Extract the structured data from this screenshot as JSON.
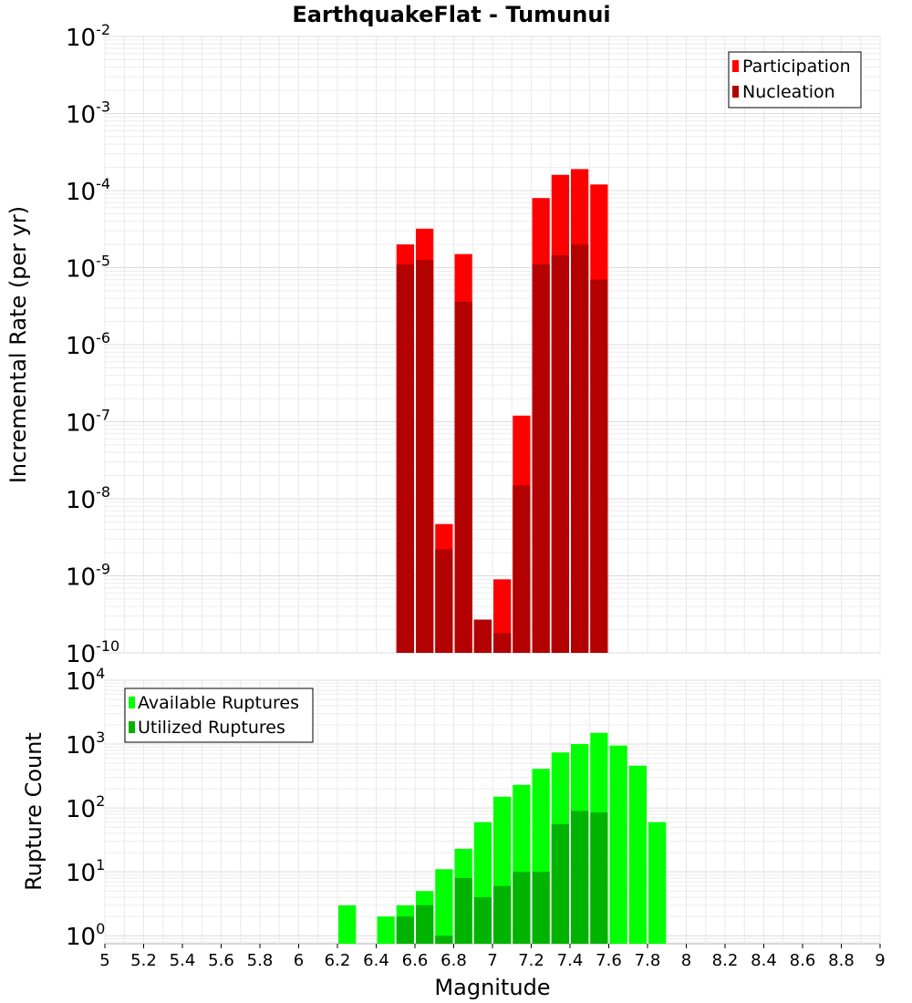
{
  "chart_data": [
    {
      "type": "bar",
      "title": "EarthquakeFlat - Tumunui",
      "ylabel": "Incremental Rate (per yr)",
      "xlabel": "",
      "y_scale": "log",
      "ylim": [
        1e-10,
        0.01
      ],
      "xlim": [
        5,
        9
      ],
      "grid": true,
      "legend_position": "top-right",
      "bar_width": 0.1,
      "y_ticks": [
        {
          "base": "10",
          "exp": "-10"
        },
        {
          "base": "10",
          "exp": "-9"
        },
        {
          "base": "10",
          "exp": "-8"
        },
        {
          "base": "10",
          "exp": "-7"
        },
        {
          "base": "10",
          "exp": "-6"
        },
        {
          "base": "10",
          "exp": "-5"
        },
        {
          "base": "10",
          "exp": "-4"
        },
        {
          "base": "10",
          "exp": "-3"
        },
        {
          "base": "10",
          "exp": "-2"
        }
      ],
      "series": [
        {
          "name": "Participation",
          "color": "#ff0000",
          "x": [
            6.55,
            6.65,
            6.75,
            6.85,
            6.95,
            7.05,
            7.15,
            7.25,
            7.35,
            7.45,
            7.55
          ],
          "values": [
            2e-05,
            3.2e-05,
            4.7e-09,
            1.5e-05,
            2.7e-10,
            9e-10,
            1.2e-07,
            8e-05,
            0.00016,
            0.00019,
            0.00012
          ]
        },
        {
          "name": "Nucleation",
          "color": "#b30000",
          "x": [
            6.55,
            6.65,
            6.75,
            6.85,
            6.95,
            7.05,
            7.15,
            7.25,
            7.35,
            7.45,
            7.55
          ],
          "values": [
            1.1e-05,
            1.25e-05,
            2.2e-09,
            3.6e-06,
            2.7e-10,
            1.8e-10,
            1.5e-08,
            1.1e-05,
            1.45e-05,
            2e-05,
            7e-06
          ]
        }
      ]
    },
    {
      "type": "bar",
      "title": "",
      "ylabel": "Rupture Count",
      "xlabel": "Magnitude",
      "y_scale": "log",
      "ylim": [
        0.75,
        10000
      ],
      "xlim": [
        5,
        9
      ],
      "grid": true,
      "legend_position": "top-left",
      "bar_width": 0.1,
      "x_ticks": [
        "5",
        "5.2",
        "5.4",
        "5.6",
        "5.8",
        "6",
        "6.2",
        "6.4",
        "6.6",
        "6.8",
        "7",
        "7.2",
        "7.4",
        "7.6",
        "7.8",
        "8",
        "8.2",
        "8.4",
        "8.6",
        "8.8",
        "9"
      ],
      "y_ticks": [
        {
          "base": "10",
          "exp": "0"
        },
        {
          "base": "10",
          "exp": "1"
        },
        {
          "base": "10",
          "exp": "2"
        },
        {
          "base": "10",
          "exp": "3"
        },
        {
          "base": "10",
          "exp": "4"
        }
      ],
      "series": [
        {
          "name": "Available Ruptures",
          "color": "#00ff00",
          "x": [
            6.25,
            6.45,
            6.55,
            6.65,
            6.75,
            6.85,
            6.95,
            7.05,
            7.15,
            7.25,
            7.35,
            7.45,
            7.55,
            7.65,
            7.75,
            7.85
          ],
          "values": [
            3,
            2,
            3,
            5,
            11,
            23,
            60,
            150,
            230,
            410,
            740,
            1000,
            1500,
            950,
            460,
            60
          ]
        },
        {
          "name": "Utilized Ruptures",
          "color": "#00b300",
          "x": [
            6.55,
            6.65,
            6.75,
            6.85,
            6.95,
            7.05,
            7.15,
            7.25,
            7.35,
            7.45,
            7.55
          ],
          "values": [
            2,
            3,
            1,
            8,
            4,
            6,
            10,
            10,
            56,
            90,
            85
          ]
        }
      ]
    }
  ]
}
